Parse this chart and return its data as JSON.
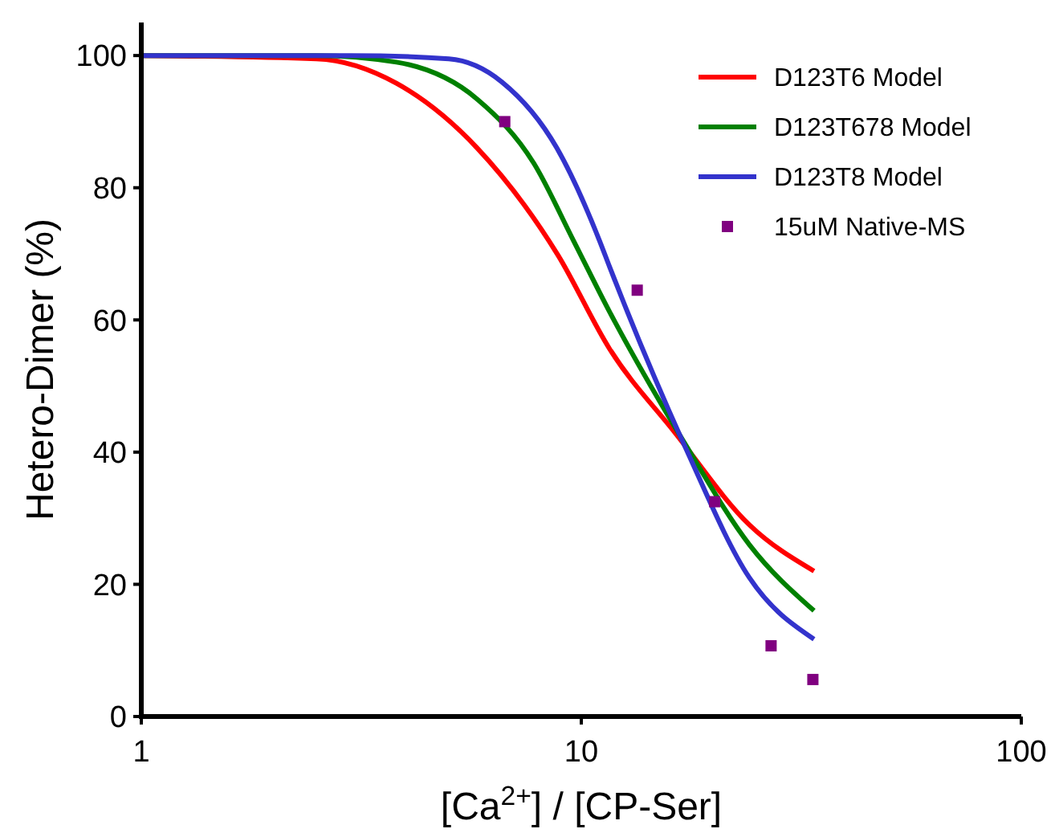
{
  "chart_data": {
    "type": "line",
    "xlabel": "[Ca$^{2+}$] / [CP-Ser]",
    "ylabel": "Hetero-Dimer (%)",
    "log": "x",
    "xlim": [
      1,
      100
    ],
    "xticks": [
      1,
      10,
      100
    ],
    "ylim": [
      0,
      105
    ],
    "yticks": [
      0,
      20,
      40,
      60,
      80,
      100
    ],
    "grid": false,
    "legend": "top right",
    "series": [
      {
        "name": "D123T6 Model",
        "color": "#ff0000",
        "x": [
          1,
          2.5,
          3.8,
          5.8,
          8.85,
          11.6,
          16.3,
          24.1,
          33.8
        ],
        "values": [
          100,
          99.5,
          95.8,
          86,
          69.8,
          55.6,
          43,
          29,
          22
        ]
      },
      {
        "name": "D123T678 Model",
        "color": "#008000",
        "x": [
          1,
          2.5,
          3.8,
          5.8,
          7.8,
          9.6,
          11.6,
          17.3,
          24.1,
          33.8
        ],
        "values": [
          100,
          100,
          99,
          93.4,
          83.7,
          72,
          61.2,
          41,
          26,
          16
        ]
      },
      {
        "name": "D123T8 Model",
        "color": "#3333cc",
        "x": [
          1,
          3,
          5,
          6.6,
          8.8,
          11,
          11.6,
          17.3,
          24.1,
          33.8
        ],
        "values": [
          100,
          100,
          99.5,
          96,
          86,
          72,
          68,
          40.5,
          21,
          11.7
        ]
      },
      {
        "name": "15uM Native-MS",
        "type": "scatter",
        "marker": "square",
        "color": "#800080",
        "x": [
          6.7,
          13.4,
          20.1,
          27,
          33.6
        ],
        "values": [
          90,
          64.5,
          32.5,
          10.7,
          5.6
        ]
      }
    ]
  }
}
